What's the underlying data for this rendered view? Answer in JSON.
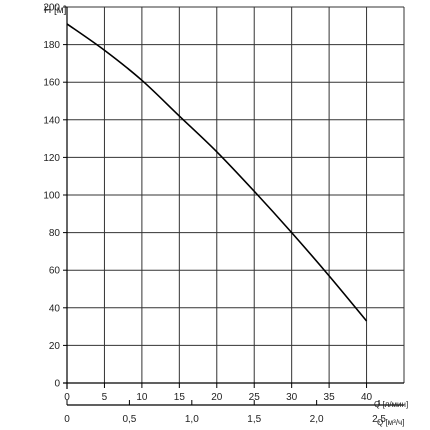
{
  "chart_data": {
    "type": "line",
    "title": "",
    "ylabel": "H [м]",
    "xlabel": "Q [л/мин]",
    "xlabel2": "Q [м³/ч]",
    "ylim": [
      0,
      200
    ],
    "xlim": [
      0,
      45
    ],
    "yticks": [
      0,
      20,
      40,
      60,
      80,
      100,
      120,
      140,
      160,
      180,
      200
    ],
    "yticklabels": [
      "0",
      "20",
      "40",
      "60",
      "80",
      "100",
      "120",
      "140",
      "160",
      "180",
      "200"
    ],
    "xticks": [
      0,
      5,
      10,
      15,
      20,
      25,
      30,
      35,
      40
    ],
    "xticklabels": [
      "0",
      "5",
      "10",
      "15",
      "20",
      "25",
      "30",
      "35",
      "40"
    ],
    "x2ticks_m3h": [
      0,
      0.5,
      1.0,
      1.5,
      2.0,
      2.5
    ],
    "x2ticklabels": [
      "0",
      "0,5",
      "1,0",
      "1,5",
      "2,0",
      "2,5"
    ],
    "grid": true,
    "series": [
      {
        "x": [
          0,
          5,
          10,
          15,
          20,
          25,
          30,
          35,
          40
        ],
        "y": [
          191,
          177,
          161,
          142,
          123,
          102,
          80,
          57,
          33
        ]
      }
    ]
  }
}
